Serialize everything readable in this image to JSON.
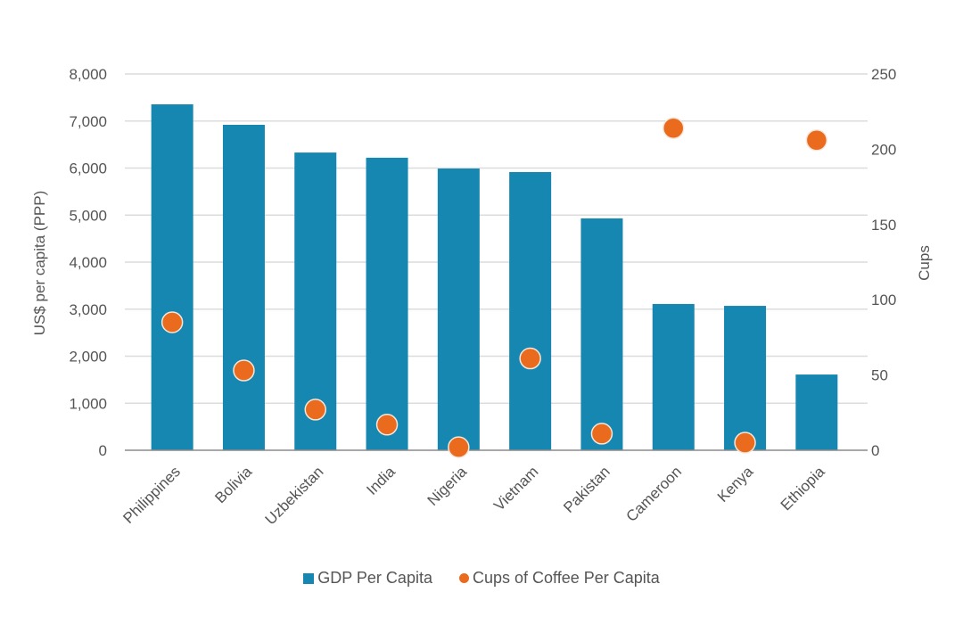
{
  "chart_data": {
    "type": "bar",
    "title": "",
    "categories": [
      "Philippines",
      "Bolivia",
      "Uzbekistan",
      "India",
      "Nigeria",
      "Vietnam",
      "Pakistan",
      "Cameroon",
      "Kenya",
      "Ethiopia"
    ],
    "series": [
      {
        "name": "GDP Per Capita",
        "type": "bar",
        "axis": "left",
        "color": "#1587b1",
        "values": [
          7355,
          6920,
          6330,
          6220,
          5990,
          5915,
          4930,
          3110,
          3070,
          1610
        ]
      },
      {
        "name": "Cups of Coffee Per Capita",
        "type": "scatter",
        "axis": "right",
        "color": "#ea6b1e",
        "values": [
          85,
          53,
          27,
          17,
          2,
          61,
          11,
          214,
          5,
          206
        ]
      }
    ],
    "xlabel": "",
    "ylabel": "US$ per capita (PPP)",
    "ylabel_right": "Cups",
    "ylim": [
      0,
      8000
    ],
    "ylim_right": [
      0,
      250
    ],
    "yticks": [
      "0",
      "1,000",
      "2,000",
      "3,000",
      "4,000",
      "5,000",
      "6,000",
      "7,000",
      "8,000"
    ],
    "yticks_right": [
      "0",
      "50",
      "100",
      "150",
      "200",
      "250"
    ],
    "grid": true,
    "legend": "bottom-center"
  }
}
